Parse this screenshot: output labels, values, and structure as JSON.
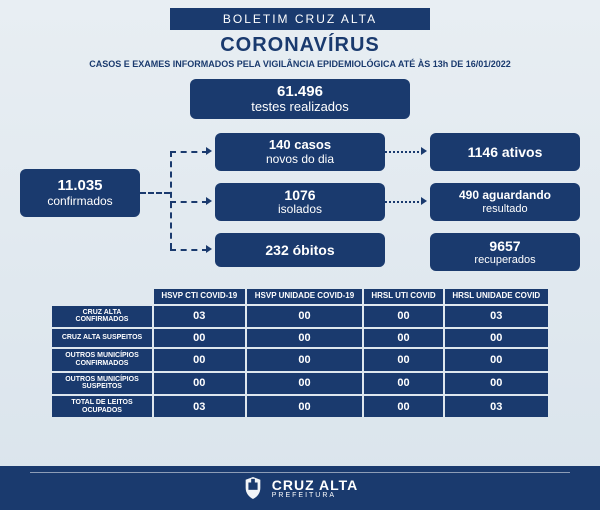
{
  "header": {
    "banner": "BOLETIM CRUZ ALTA",
    "title": "CORONAVÍRUS",
    "subtitle": "CASOS E EXAMES INFORMADOS PELA VIGILÂNCIA EPIDEMIOLÓGICA ATÉ ÀS 13h DE 16/01/2022"
  },
  "boxes": {
    "tests": {
      "num": "61.496",
      "lbl": "testes realizados"
    },
    "confirmed": {
      "num": "11.035",
      "lbl": "confirmados"
    },
    "new_cases": {
      "num": "140 casos",
      "lbl": "novos do dia"
    },
    "active": {
      "num": "1146 ativos",
      "lbl": ""
    },
    "isolated": {
      "num": "1076",
      "lbl": "isolados"
    },
    "awaiting": {
      "num": "490 aguardando",
      "lbl": "resultado"
    },
    "deaths": {
      "num": "232 óbitos",
      "lbl": ""
    },
    "recovered": {
      "num": "9657",
      "lbl": "recuperados"
    }
  },
  "table": {
    "columns": [
      "HSVP CTI COVID-19",
      "HSVP UNIDADE COVID-19",
      "HRSL UTI COVID",
      "HRSL UNIDADE COVID"
    ],
    "rows": [
      {
        "h": "CRUZ ALTA CONFIRMADOS",
        "v": [
          "03",
          "00",
          "00",
          "03"
        ]
      },
      {
        "h": "CRUZ ALTA SUSPEITOS",
        "v": [
          "00",
          "00",
          "00",
          "00"
        ]
      },
      {
        "h": "OUTROS MUNICÍPIOS CONFIRMADOS",
        "v": [
          "00",
          "00",
          "00",
          "00"
        ]
      },
      {
        "h": "OUTROS MUNICÍPIOS SUSPEITOS",
        "v": [
          "00",
          "00",
          "00",
          "00"
        ]
      },
      {
        "h": "TOTAL DE LEITOS OCUPADOS",
        "v": [
          "03",
          "00",
          "00",
          "03"
        ]
      }
    ]
  },
  "footer": {
    "name": "CRUZ ALTA",
    "sub": "PREFEITURA"
  },
  "colors": {
    "primary": "#1a3a6e",
    "bg_top": "#e8eef3",
    "bg_bottom": "#dae4ec"
  }
}
